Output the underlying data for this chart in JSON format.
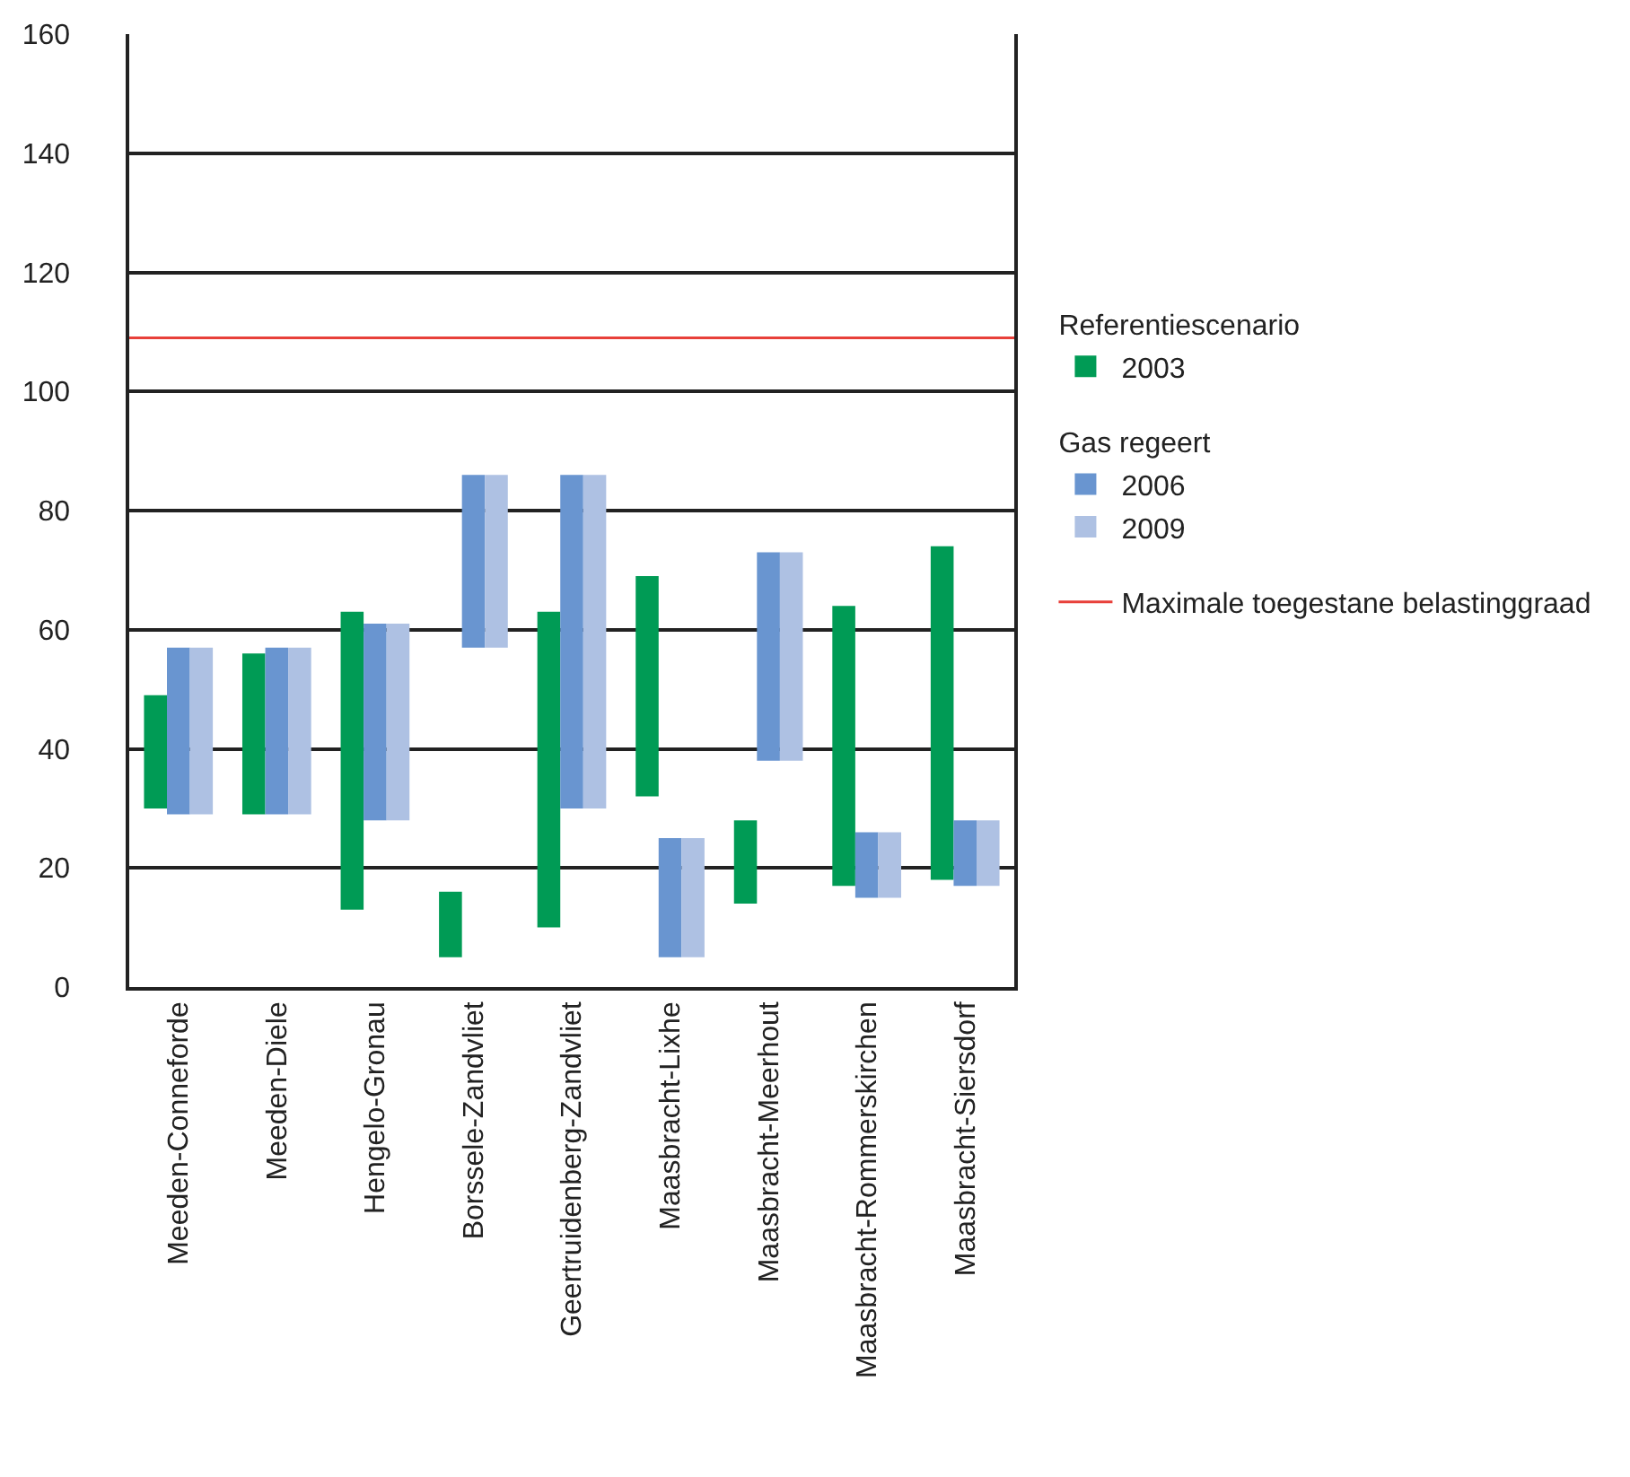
{
  "chart_data": {
    "type": "bar",
    "categories": [
      "Meeden-Conneforde",
      "Meeden-Diele",
      "Hengelo-Gronau",
      "Borssele-Zandvliet",
      "Geertruidenberg-Zandvliet",
      "Maasbracht-Lixhe",
      "Maasbracht-Meerhout",
      "Maasbracht-Rommerskirchen",
      "Maasbracht-Siersdorf"
    ],
    "series": [
      {
        "name": "2003",
        "color": "#009b55",
        "base": [
          30,
          29,
          13,
          5,
          10,
          32,
          14,
          17,
          18
        ],
        "values": [
          19,
          27,
          50,
          11,
          53,
          37,
          14,
          47,
          56
        ]
      },
      {
        "name": "2006",
        "color": "#6995d0",
        "base": [
          29,
          29,
          28,
          57,
          30,
          5,
          38,
          15,
          17
        ],
        "values": [
          28,
          28,
          33,
          29,
          56,
          20,
          35,
          11,
          11
        ]
      },
      {
        "name": "2009",
        "color": "#aec1e3",
        "base": [
          29,
          29,
          28,
          57,
          30,
          5,
          38,
          15,
          17
        ],
        "values": [
          28,
          28,
          33,
          29,
          56,
          20,
          35,
          11,
          11
        ]
      }
    ],
    "annotations": [
      "Referentiescenario",
      "Gas regeert"
    ],
    "ref_lines": [
      {
        "axis": "y",
        "value": 109,
        "label": "Maximale toegestane belastinggraad",
        "color": "#e8403a"
      }
    ],
    "ylim": [
      0,
      160
    ],
    "yticks": [
      0,
      20,
      40,
      60,
      80,
      100,
      120,
      140,
      160
    ],
    "grid": "y",
    "legend": "right"
  }
}
